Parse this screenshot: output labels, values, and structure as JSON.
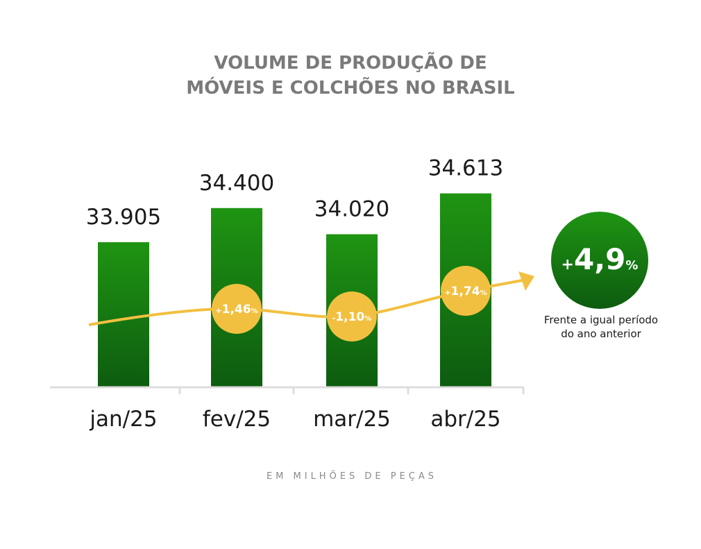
{
  "chart_data": {
    "type": "bar",
    "title": [
      "VOLUME DE PRODUÇÃO DE",
      "MÓVEIS E COLCHÕES NO BRASIL"
    ],
    "categories": [
      "jan/25",
      "fev/25",
      "mar/25",
      "abr/25"
    ],
    "values": [
      33.905,
      34.4,
      34.02,
      34.613
    ],
    "value_labels": [
      "33.905",
      "34.400",
      "34.020",
      "34.613"
    ],
    "changes": [
      {
        "sign": "",
        "value": "",
        "unit": ""
      },
      {
        "sign": "+",
        "value": "1,46",
        "unit": "%"
      },
      {
        "sign": "-",
        "value": "1,10",
        "unit": "%"
      },
      {
        "sign": "+",
        "value": "1,74",
        "unit": "%"
      }
    ],
    "highlight": {
      "sign": "+",
      "value": "4,9",
      "unit": "%",
      "note": [
        "Frente a igual período",
        "do ano anterior"
      ]
    },
    "unit_label": "EM MILHÕES DE PEÇAS",
    "colors": {
      "bar_top": "#1f9412",
      "bar_bottom": "#0d5c10",
      "trend": "#f2c040",
      "title": "#7a7a7a",
      "axis": "#dddddd"
    }
  }
}
